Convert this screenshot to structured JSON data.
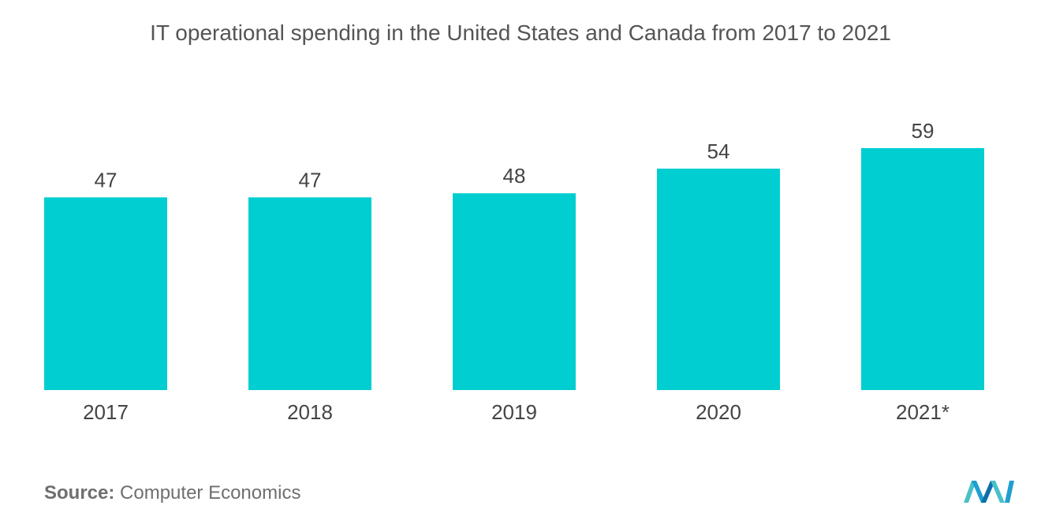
{
  "chart_data": {
    "type": "bar",
    "title": "IT operational spending in the United States and Canada from 2017 to 2021",
    "categories": [
      "2017",
      "2018",
      "2019",
      "2020",
      "2021*"
    ],
    "values": [
      47,
      47,
      48,
      54,
      59
    ],
    "value_labels": [
      "47",
      "47",
      "48",
      "54",
      "59"
    ],
    "xlabel": "",
    "ylabel": "",
    "ylim": [
      0,
      59
    ],
    "grid": false,
    "legend": "none",
    "bar_color": "#00CED1"
  },
  "source": {
    "label": "Source:",
    "text": "Computer Economics"
  },
  "logo": {
    "icon": "mordor-intelligence-logo-icon",
    "colors": [
      "#1f9fd0",
      "#49c0c8",
      "#0c6fa8"
    ]
  }
}
